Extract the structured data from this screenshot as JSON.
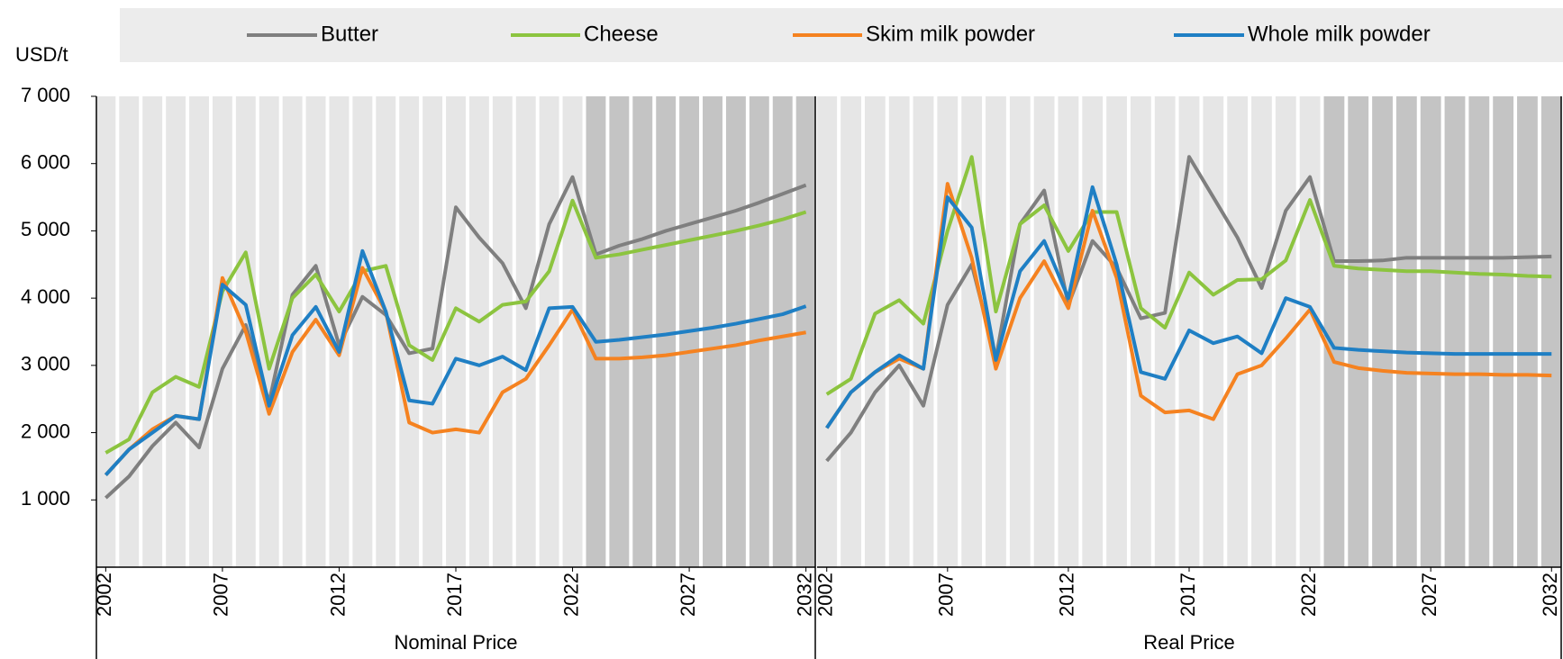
{
  "chart_data": [
    {
      "type": "line",
      "ylabel": "USD/t",
      "xlabel": "Nominal Price",
      "x": [
        2002,
        2003,
        2004,
        2005,
        2006,
        2007,
        2008,
        2009,
        2010,
        2011,
        2012,
        2013,
        2014,
        2015,
        2016,
        2017,
        2018,
        2019,
        2020,
        2021,
        2022,
        2023,
        2024,
        2025,
        2026,
        2027,
        2028,
        2029,
        2030,
        2031,
        2032
      ],
      "xlim": [
        2001.6,
        2032.4
      ],
      "xticks": [
        2002,
        2007,
        2012,
        2017,
        2022,
        2027,
        2032
      ],
      "ylim": [
        0,
        7000
      ],
      "yticks": [
        {
          "value": 1000,
          "label": "1 000"
        },
        {
          "value": 2000,
          "label": "2 000"
        },
        {
          "value": 3000,
          "label": "3 000"
        },
        {
          "value": 4000,
          "label": "4 000"
        },
        {
          "value": 5000,
          "label": "5 000"
        },
        {
          "value": 6000,
          "label": "6 000"
        },
        {
          "value": 7000,
          "label": "7 000"
        }
      ],
      "forecast_from": 2023,
      "series": [
        {
          "name": "Butter",
          "color": "#7f7f7f",
          "values": [
            1030,
            1350,
            1800,
            2150,
            1780,
            2950,
            3600,
            2450,
            4050,
            4480,
            3300,
            4020,
            3750,
            3180,
            3250,
            5350,
            4900,
            4520,
            3850,
            5100,
            5800,
            4650,
            4780,
            4880,
            5000,
            5100,
            5200,
            5300,
            5420,
            5550,
            5680
          ]
        },
        {
          "name": "Cheese",
          "color": "#8cc43f",
          "values": [
            1700,
            1900,
            2600,
            2830,
            2680,
            4100,
            4680,
            2950,
            4000,
            4350,
            3800,
            4400,
            4480,
            3300,
            3080,
            3850,
            3650,
            3900,
            3950,
            4400,
            5450,
            4600,
            4650,
            4720,
            4790,
            4860,
            4930,
            5000,
            5080,
            5170,
            5280
          ]
        },
        {
          "name": "Skim milk powder",
          "color": "#f58220",
          "values": [
            1370,
            1750,
            2050,
            2250,
            2200,
            4300,
            3500,
            2280,
            3200,
            3680,
            3150,
            4450,
            3800,
            2150,
            2000,
            2050,
            2000,
            2600,
            2800,
            3300,
            3830,
            3100,
            3100,
            3120,
            3150,
            3200,
            3250,
            3300,
            3370,
            3430,
            3490
          ]
        },
        {
          "name": "Whole milk powder",
          "color": "#1f7fc4",
          "values": [
            1370,
            1750,
            2000,
            2250,
            2200,
            4200,
            3900,
            2400,
            3450,
            3870,
            3200,
            4700,
            3800,
            2480,
            2430,
            3100,
            3000,
            3130,
            2930,
            3850,
            3870,
            3350,
            3380,
            3420,
            3460,
            3510,
            3560,
            3620,
            3690,
            3760,
            3880
          ]
        }
      ]
    },
    {
      "type": "line",
      "xlabel": "Real Price",
      "x": [
        2002,
        2003,
        2004,
        2005,
        2006,
        2007,
        2008,
        2009,
        2010,
        2011,
        2012,
        2013,
        2014,
        2015,
        2016,
        2017,
        2018,
        2019,
        2020,
        2021,
        2022,
        2023,
        2024,
        2025,
        2026,
        2027,
        2028,
        2029,
        2030,
        2031,
        2032
      ],
      "xlim": [
        2001.6,
        2032.4
      ],
      "xticks": [
        2002,
        2007,
        2012,
        2017,
        2022,
        2027,
        2032
      ],
      "ylim": [
        0,
        7000
      ],
      "forecast_from": 2023,
      "series": [
        {
          "color": "#7f7f7f",
          "values": [
            1580,
            2000,
            2600,
            3000,
            2400,
            3900,
            4500,
            3100,
            5100,
            5600,
            3900,
            4850,
            4450,
            3700,
            3780,
            6100,
            5500,
            4900,
            4150,
            5300,
            5800,
            4550,
            4550,
            4560,
            4600,
            4600,
            4600,
            4600,
            4600,
            4610,
            4620
          ]
        },
        {
          "color": "#8cc43f",
          "values": [
            2570,
            2800,
            3770,
            3970,
            3620,
            5000,
            6100,
            3800,
            5100,
            5380,
            4700,
            5280,
            5280,
            3850,
            3560,
            4380,
            4050,
            4270,
            4280,
            4560,
            5460,
            4480,
            4440,
            4420,
            4400,
            4400,
            4380,
            4360,
            4350,
            4330,
            4320
          ]
        },
        {
          "color": "#f58220",
          "values": [
            2070,
            2600,
            2900,
            3100,
            2950,
            5700,
            4600,
            2950,
            4000,
            4550,
            3850,
            5300,
            4300,
            2550,
            2300,
            2330,
            2200,
            2870,
            3000,
            3400,
            3830,
            3050,
            2960,
            2920,
            2890,
            2880,
            2870,
            2870,
            2860,
            2860,
            2850
          ]
        },
        {
          "color": "#1f7fc4",
          "values": [
            2070,
            2600,
            2900,
            3150,
            2950,
            5500,
            5050,
            3080,
            4400,
            4850,
            4000,
            5650,
            4500,
            2900,
            2800,
            3520,
            3330,
            3430,
            3180,
            4000,
            3870,
            3260,
            3230,
            3210,
            3190,
            3180,
            3170,
            3170,
            3170,
            3170,
            3170
          ]
        }
      ]
    }
  ]
}
